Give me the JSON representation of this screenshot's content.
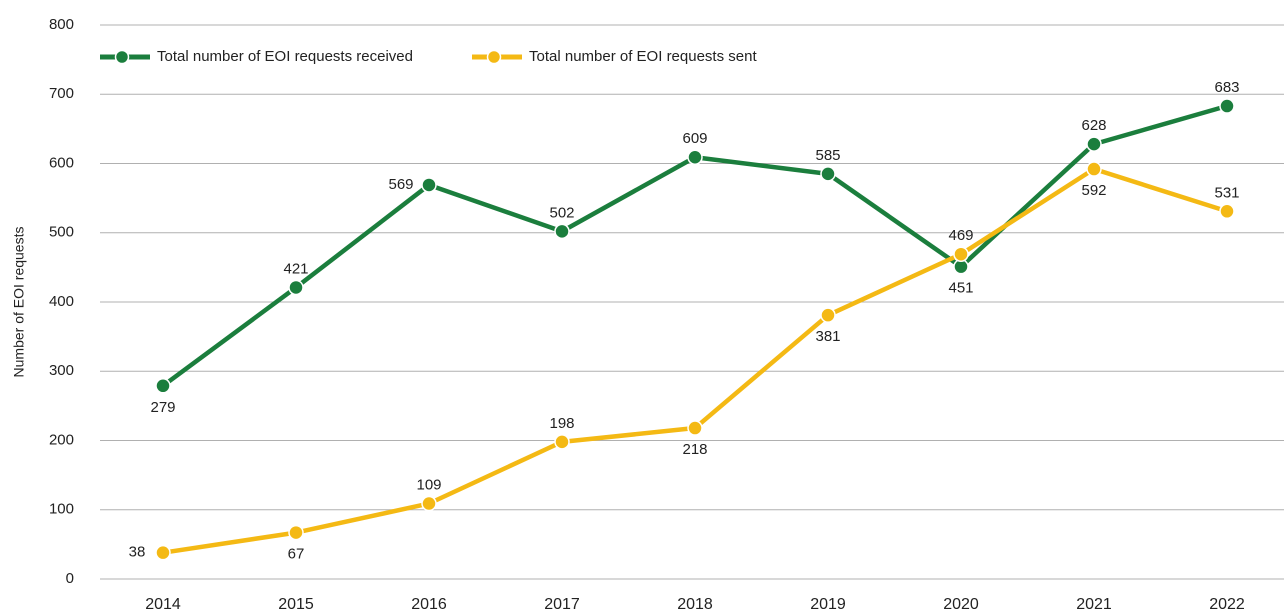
{
  "chart_data": {
    "type": "line",
    "ylabel": "Number of EOI requests",
    "categories": [
      "2014",
      "2015",
      "2016",
      "2017",
      "2018",
      "2019",
      "2020",
      "2021",
      "2022"
    ],
    "series": [
      {
        "name": "Total number of EOI requests received",
        "color": "#1b7e3d",
        "values": [
          279,
          421,
          569,
          502,
          609,
          585,
          451,
          628,
          683
        ]
      },
      {
        "name": "Total number of EOI requests sent",
        "color": "#f4b914",
        "values": [
          38,
          67,
          109,
          198,
          218,
          381,
          469,
          592,
          531
        ]
      }
    ],
    "ylim": [
      0,
      800
    ],
    "yticks": [
      0,
      100,
      200,
      300,
      400,
      500,
      600,
      700,
      800
    ],
    "grid": true
  }
}
